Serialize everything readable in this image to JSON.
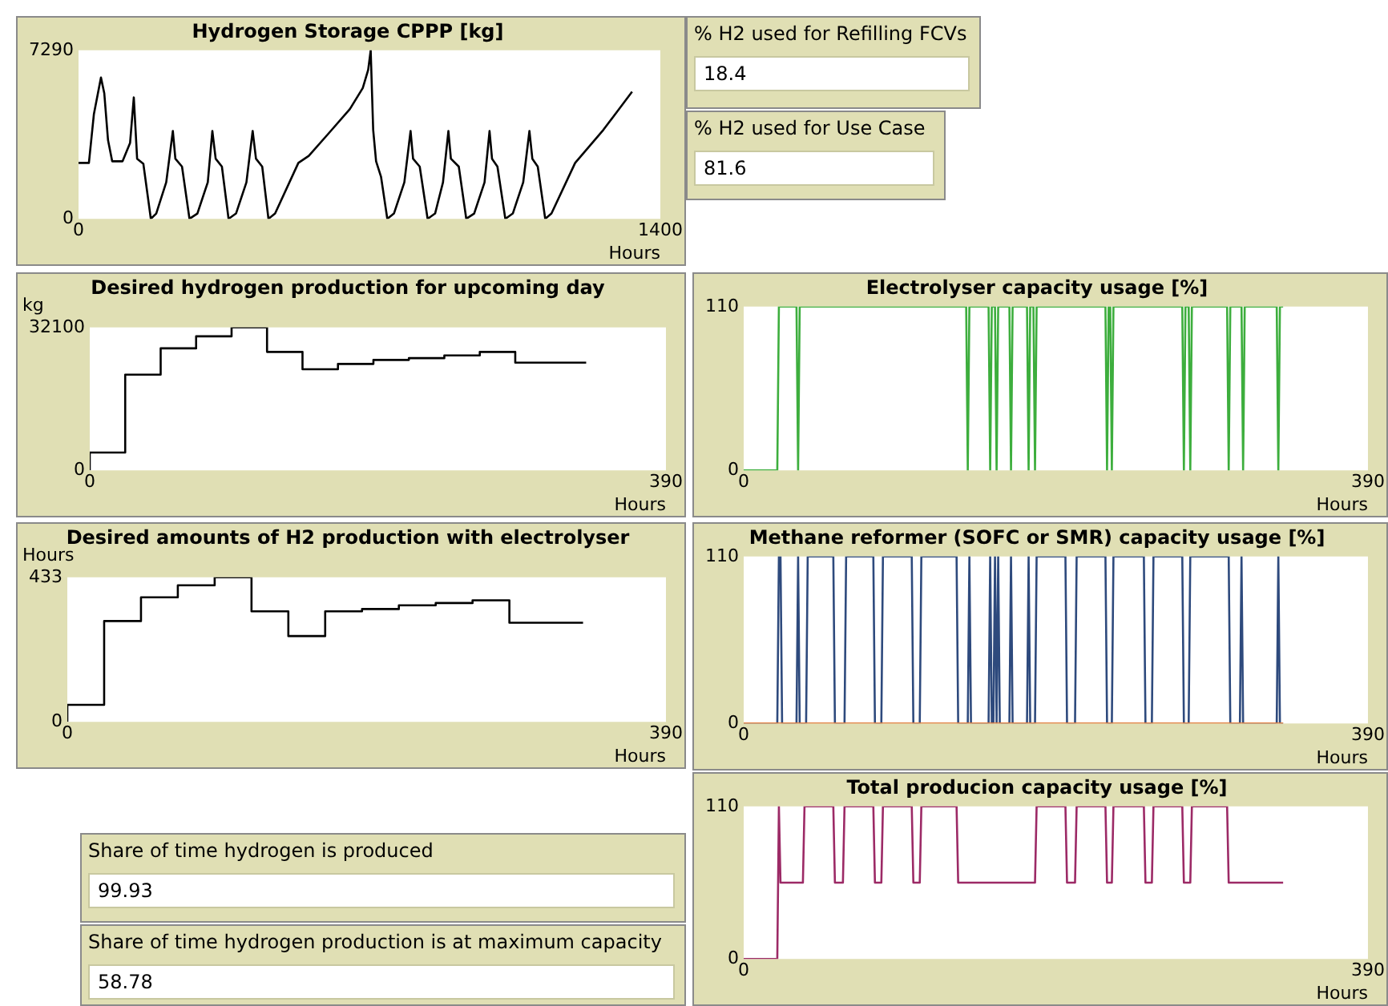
{
  "chart_data": [
    {
      "type": "line",
      "title": "Hydrogen Storage CPPP [kg]",
      "xlabel": "Hours",
      "xlim": [
        0,
        1400
      ],
      "xticks": [
        0,
        1400
      ],
      "ylim": [
        0,
        7290
      ],
      "yticks": [
        0,
        7290
      ],
      "series": [
        {
          "color": "#000000",
          "x": [
            0,
            25,
            37,
            54,
            62,
            71,
            81,
            106,
            124,
            133,
            141,
            156,
            174,
            187,
            211,
            227,
            233,
            249,
            267,
            286,
            311,
            322,
            330,
            345,
            361,
            379,
            404,
            419,
            427,
            442,
            457,
            473,
            529,
            554,
            604,
            653,
            684,
            697,
            703,
            709,
            716,
            728,
            743,
            759,
            784,
            799,
            805,
            821,
            840,
            858,
            877,
            890,
            896,
            915,
            933,
            952,
            977,
            989,
            995,
            1008,
            1027,
            1045,
            1070,
            1085,
            1092,
            1105,
            1123,
            1138,
            1195,
            1263,
            1332
          ],
          "values": [
            2420,
            2420,
            4530,
            6110,
            5430,
            3400,
            2490,
            2490,
            3280,
            5250,
            2600,
            2380,
            0,
            230,
            1580,
            3800,
            2600,
            2260,
            0,
            230,
            1580,
            3800,
            2600,
            2260,
            0,
            230,
            1580,
            3800,
            2600,
            2260,
            0,
            230,
            2420,
            2720,
            3740,
            4750,
            5660,
            6450,
            7290,
            3850,
            2490,
            1810,
            0,
            230,
            1580,
            3800,
            2600,
            2260,
            0,
            230,
            1580,
            3800,
            2600,
            2260,
            0,
            230,
            1580,
            3800,
            2600,
            2260,
            0,
            230,
            1580,
            3800,
            2600,
            2260,
            0,
            230,
            2420,
            3850,
            5500
          ]
        }
      ]
    },
    {
      "type": "other",
      "annotations": [
        "% H2 used for Refilling FCVs",
        "18.4",
        "% H2 used for Use Case",
        "81.6"
      ]
    },
    {
      "type": "step",
      "title": "Desired hydrogen production for upcoming day",
      "xlabel": "Hours",
      "ylabel": "kg",
      "xlim": [
        0,
        390
      ],
      "xticks": [
        0,
        390
      ],
      "ylim": [
        0,
        32100
      ],
      "yticks": [
        0,
        32100
      ],
      "series": [
        {
          "color": "#000000",
          "x": [
            0,
            24,
            48,
            72,
            96,
            120,
            144,
            168,
            192,
            216,
            240,
            264,
            288,
            312,
            336
          ],
          "values": [
            0,
            4000,
            21500,
            27400,
            30100,
            32100,
            26600,
            22700,
            23900,
            24800,
            25200,
            25800,
            26600,
            24200,
            24200
          ]
        }
      ]
    },
    {
      "type": "line",
      "title": "Electrolyser capacity usage [%]",
      "xlabel": "Hours",
      "xlim": [
        0,
        390
      ],
      "xticks": [
        0,
        390
      ],
      "ylim": [
        0,
        110
      ],
      "yticks": [
        0,
        110
      ],
      "series": [
        {
          "color": "#3dae3d",
          "x": [
            0,
            21,
            22,
            33,
            34,
            35,
            139,
            140,
            141,
            153,
            154,
            155,
            157,
            158,
            159,
            166,
            167,
            168,
            177,
            178,
            179,
            181,
            182,
            183,
            226,
            227,
            228,
            229,
            230,
            231,
            274,
            275,
            276,
            278,
            279,
            280,
            302,
            303,
            304,
            311,
            312,
            313,
            333,
            334,
            335,
            337
          ],
          "values": [
            0,
            0,
            110,
            110,
            0,
            110,
            110,
            0,
            110,
            110,
            0,
            110,
            110,
            0,
            110,
            110,
            0,
            110,
            110,
            0,
            110,
            110,
            0,
            110,
            110,
            0,
            110,
            110,
            0,
            110,
            110,
            0,
            110,
            110,
            0,
            110,
            110,
            0,
            110,
            110,
            0,
            110,
            110,
            0,
            110,
            110
          ]
        }
      ]
    },
    {
      "type": "step",
      "title": "Desired amounts of H2 production with electrolyser",
      "xlabel": "Hours",
      "ylabel": "Hours",
      "xlim": [
        0,
        390
      ],
      "xticks": [
        0,
        390
      ],
      "ylim": [
        0,
        433
      ],
      "yticks": [
        0,
        433
      ],
      "series": [
        {
          "color": "#000000",
          "x": [
            0,
            24,
            48,
            72,
            96,
            120,
            144,
            168,
            192,
            216,
            240,
            264,
            288,
            312,
            336
          ],
          "values": [
            0,
            51,
            302,
            373,
            409,
            433,
            331,
            257,
            331,
            338,
            349,
            356,
            364,
            297,
            297
          ]
        }
      ]
    },
    {
      "type": "line",
      "title": "Methane reformer (SOFC or SMR) capacity usage [%]",
      "xlabel": "Hours",
      "xlim": [
        0,
        390
      ],
      "xticks": [
        0,
        390
      ],
      "ylim": [
        0,
        110
      ],
      "yticks": [
        0,
        110
      ],
      "series": [
        {
          "color": "#e07b39",
          "x": [
            0,
            337
          ],
          "values": [
            0,
            0
          ]
        },
        {
          "color": "#2e4a7d",
          "x": [
            0,
            21,
            22,
            23,
            24,
            33,
            34,
            35,
            39,
            40,
            56,
            57,
            63,
            64,
            81,
            82,
            86,
            87,
            105,
            106,
            110,
            111,
            133,
            134,
            140,
            141,
            142,
            153,
            154,
            155,
            156,
            157,
            158,
            159,
            160,
            166,
            167,
            168,
            177,
            178,
            179,
            182,
            183,
            201,
            202,
            207,
            208,
            226,
            227,
            230,
            231,
            250,
            251,
            255,
            256,
            274,
            275,
            278,
            279,
            303,
            304,
            310,
            311,
            312,
            333,
            334,
            335,
            337
          ],
          "values": [
            0,
            0,
            110,
            110,
            0,
            0,
            110,
            0,
            0,
            110,
            110,
            0,
            0,
            110,
            110,
            0,
            0,
            110,
            110,
            0,
            0,
            110,
            110,
            0,
            0,
            110,
            0,
            0,
            110,
            0,
            0,
            110,
            0,
            110,
            0,
            0,
            110,
            0,
            0,
            110,
            0,
            0,
            110,
            110,
            0,
            0,
            110,
            110,
            0,
            0,
            110,
            110,
            0,
            0,
            110,
            110,
            0,
            0,
            110,
            110,
            0,
            0,
            110,
            0,
            0,
            110,
            0,
            0
          ]
        }
      ]
    },
    {
      "type": "line",
      "title": "Total producion capacity usage [%]",
      "xlabel": "Hours",
      "xlim": [
        0,
        390
      ],
      "xticks": [
        0,
        390
      ],
      "ylim": [
        0,
        110
      ],
      "yticks": [
        0,
        110
      ],
      "series": [
        {
          "color": "#9c2a66",
          "x": [
            0,
            21,
            22,
            23,
            37,
            38,
            56,
            57,
            62,
            63,
            81,
            82,
            86,
            87,
            105,
            106,
            110,
            111,
            133,
            134,
            182,
            183,
            201,
            202,
            207,
            208,
            226,
            227,
            230,
            231,
            250,
            251,
            255,
            256,
            274,
            275,
            279,
            280,
            302,
            303,
            337
          ],
          "values": [
            0,
            0,
            110,
            55,
            55,
            110,
            110,
            55,
            55,
            110,
            110,
            55,
            55,
            110,
            110,
            55,
            55,
            110,
            110,
            55,
            55,
            110,
            110,
            55,
            55,
            110,
            110,
            55,
            55,
            110,
            110,
            55,
            55,
            110,
            110,
            55,
            55,
            110,
            110,
            55,
            55
          ]
        }
      ]
    },
    {
      "type": "other",
      "annotations": [
        "Share of time  hydrogen is produced",
        "99.93",
        "Share of time hydrogen production is at maximum capacity",
        "58.78"
      ]
    }
  ]
}
